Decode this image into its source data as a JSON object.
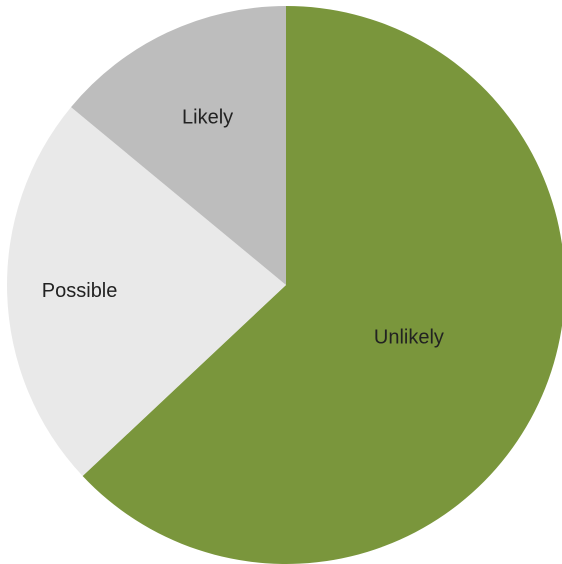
{
  "chart_data": {
    "type": "pie",
    "title": "",
    "slices": [
      {
        "label": "Unlikely",
        "value": 63,
        "color": "#7a963c"
      },
      {
        "label": "Possible",
        "value": 23,
        "color": "#e9e9e9"
      },
      {
        "label": "Likely",
        "value": 14,
        "color": "#bdbdbd"
      }
    ],
    "start": "12 o'clock",
    "direction": "clockwise",
    "legend": "none",
    "labels": "inside slices"
  }
}
